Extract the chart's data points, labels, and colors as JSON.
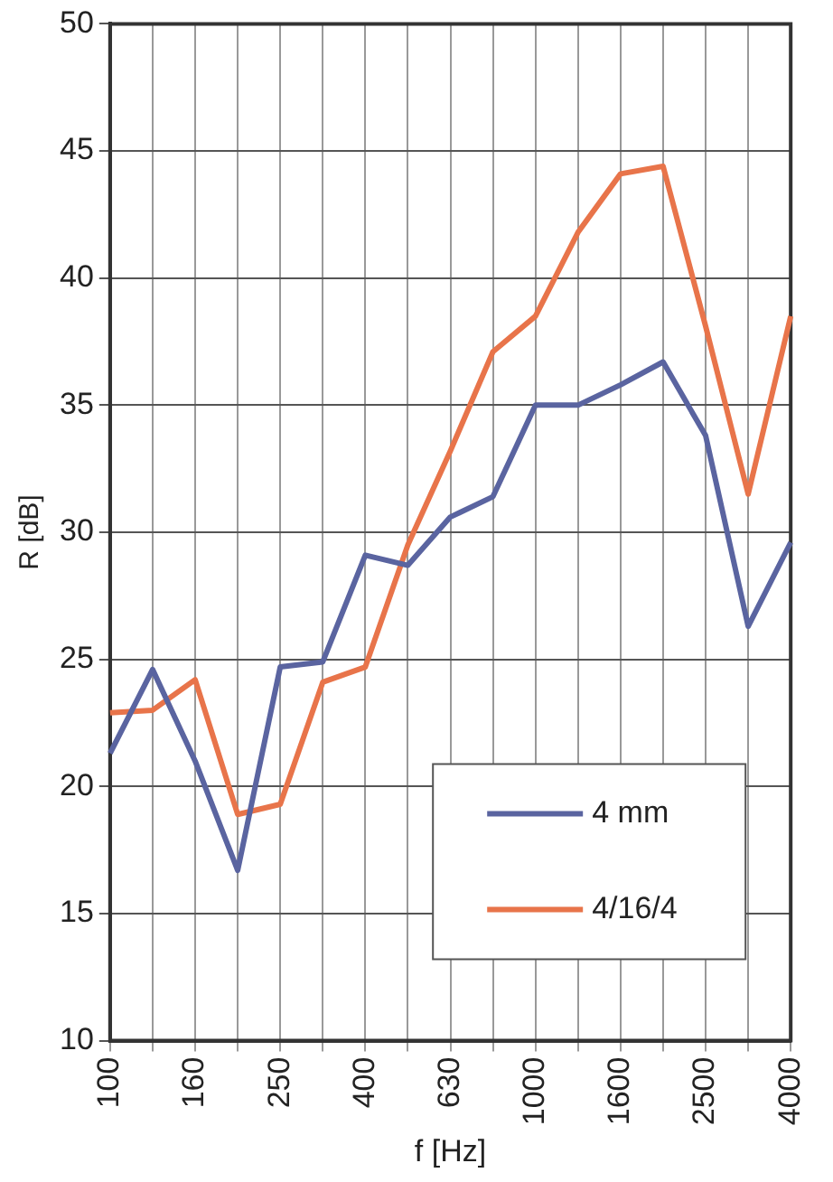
{
  "chart_data": {
    "type": "line",
    "xlabel": "f [Hz]",
    "ylabel": "R [dB]",
    "categories": [
      "100",
      null,
      "160",
      null,
      "250",
      null,
      "400",
      null,
      "630",
      null,
      "1000",
      null,
      "1600",
      null,
      "2500",
      null,
      "4000"
    ],
    "series": [
      {
        "name": "4 mm",
        "color": "#5a64a0",
        "values": [
          21.3,
          24.6,
          21.0,
          16.7,
          24.7,
          24.9,
          29.1,
          28.7,
          30.6,
          31.4,
          35.0,
          35.0,
          35.8,
          36.7,
          33.8,
          26.3,
          29.6
        ]
      },
      {
        "name": "4/16/4",
        "color": "#e8744a",
        "values": [
          22.9,
          23.0,
          24.2,
          18.9,
          19.3,
          24.1,
          24.7,
          29.5,
          33.2,
          37.1,
          38.5,
          41.8,
          44.1,
          44.4,
          38.1,
          31.5,
          38.5
        ]
      }
    ],
    "ylim": [
      10,
      50
    ],
    "yticks": [
      10,
      15,
      20,
      25,
      30,
      35,
      40,
      45,
      50
    ],
    "grid": true,
    "legend": "bottom right",
    "marker": "none",
    "line_style": "solid"
  }
}
